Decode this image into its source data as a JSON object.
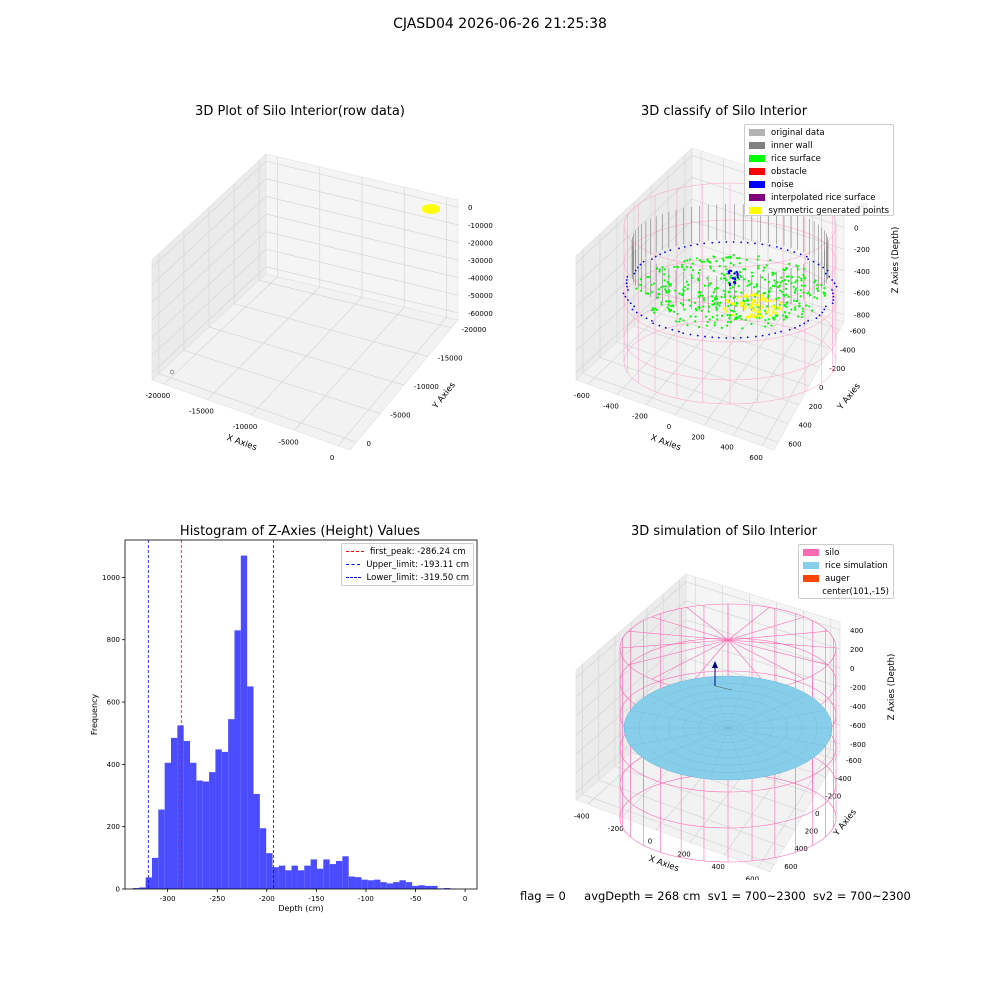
{
  "suptitle": "CJASD04 2026-06-26 21:25:38",
  "status": {
    "flag": "flag = 0",
    "avg_depth": "avgDepth = 268 cm",
    "sv1": "sv1 = 700~2300",
    "sv2": "sv2 = 700~2300"
  },
  "colors": {
    "pane": "#f2f2f2",
    "grid": "#d8d8d8",
    "hist": "#4b4bff",
    "original": "#b3b3b3",
    "inner_wall": "#808080",
    "rice_surface": "#00ff00",
    "obstacle": "#ff0000",
    "noise": "#0000ff",
    "interpolated": "#800080",
    "symmetric": "#ffff00",
    "silo": "#ff69b4",
    "rice_sim": "#87ceeb",
    "auger": "#ff4500"
  },
  "chart_data": [
    {
      "type": "scatter3d",
      "title": "3D Plot of Silo Interior(row data)",
      "xlabel": "X Axies",
      "ylabel": "Y Axies",
      "zlabel": "Z Axies (Depth)",
      "xticks": [
        "-20000",
        "-15000",
        "-10000",
        "-5000",
        "0"
      ],
      "yticks": [
        "-20000",
        "-15000",
        "-10000",
        "-5000",
        "0"
      ],
      "zticks": [
        "0",
        "-10000",
        "-20000",
        "-30000",
        "-40000",
        "-50000",
        "-60000"
      ],
      "grid": true
    },
    {
      "type": "scatter3d",
      "title": "3D classify of Silo Interior",
      "xlabel": "X Axies",
      "ylabel": "Y Axies",
      "zlabel": "Z Axies (Depth)",
      "xticks": [
        "-600",
        "-400",
        "-200",
        "0",
        "200",
        "400",
        "600"
      ],
      "yticks": [
        "-600",
        "-400",
        "-200",
        "0",
        "200",
        "400",
        "600"
      ],
      "zticks": [
        "200",
        "0",
        "-200",
        "-400",
        "-600",
        "-800"
      ],
      "legend": [
        {
          "label": "original data",
          "color": "#b3b3b3"
        },
        {
          "label": "inner wall",
          "color": "#808080"
        },
        {
          "label": "rice surface",
          "color": "#00ff00"
        },
        {
          "label": "obstacle",
          "color": "#ff0000"
        },
        {
          "label": "noise",
          "color": "#0000ff"
        },
        {
          "label": "interpolated rice surface",
          "color": "#800080"
        },
        {
          "label": "symmetric generated points",
          "color": "#ffff00"
        }
      ],
      "legend_position": "top-right",
      "grid": true
    },
    {
      "type": "bar",
      "title": "Histogram of Z-Axies (Height) Values",
      "xlabel": "Depth (cm)",
      "ylabel": "Frequency",
      "xlim": [
        -343,
        12
      ],
      "ylim": [
        0,
        1120
      ],
      "xticks": [
        "-300",
        "-250",
        "-200",
        "-150",
        "-100",
        "-50",
        "0"
      ],
      "xtick_values": [
        -300,
        -250,
        -200,
        -150,
        -100,
        -50,
        0
      ],
      "yticks": [
        "0",
        "200",
        "400",
        "600",
        "800",
        "1000"
      ],
      "ytick_values": [
        0,
        200,
        400,
        600,
        800,
        1000
      ],
      "bin_start": -335,
      "bin_width": 6.4,
      "values": [
        3,
        5,
        37,
        100,
        255,
        405,
        485,
        525,
        475,
        405,
        348,
        345,
        375,
        448,
        440,
        545,
        830,
        1070,
        650,
        305,
        195,
        115,
        70,
        75,
        60,
        75,
        60,
        75,
        95,
        65,
        95,
        80,
        90,
        105,
        40,
        38,
        30,
        28,
        30,
        22,
        18,
        22,
        28,
        22,
        10,
        12,
        10,
        10,
        2,
        3,
        1
      ],
      "vlines": [
        {
          "x": -286.24,
          "label": "first_peak: -286.24 cm",
          "color": "#ff0000"
        },
        {
          "x": -193.11,
          "label": "Upper_limit: -193.11 cm",
          "color": "#0000ff"
        },
        {
          "x": -319.5,
          "label": "Lower_limit: -319.50 cm",
          "color": "#0000ff"
        }
      ],
      "legend_position": "top-right"
    },
    {
      "type": "surface3d",
      "title": "3D simulation of Silo Interior",
      "xlabel": "X Axies",
      "ylabel": "Y Axies",
      "zlabel": "Z Axies (Depth)",
      "xticks": [
        "-400",
        "-200",
        "0",
        "200",
        "400",
        "600"
      ],
      "yticks": [
        "-600",
        "-400",
        "-200",
        "0",
        "200",
        "400",
        "600"
      ],
      "zticks": [
        "400",
        "200",
        "0",
        "-200",
        "-400",
        "-600",
        "-800"
      ],
      "legend": [
        {
          "label": "silo",
          "color": "#ff69b4"
        },
        {
          "label": "rice simulation",
          "color": "#87ceeb"
        },
        {
          "label": "auger",
          "color": "#ff4500"
        },
        {
          "label": "center(101,-15)",
          "color": ""
        }
      ],
      "legend_position": "top-right",
      "grid": true
    }
  ]
}
